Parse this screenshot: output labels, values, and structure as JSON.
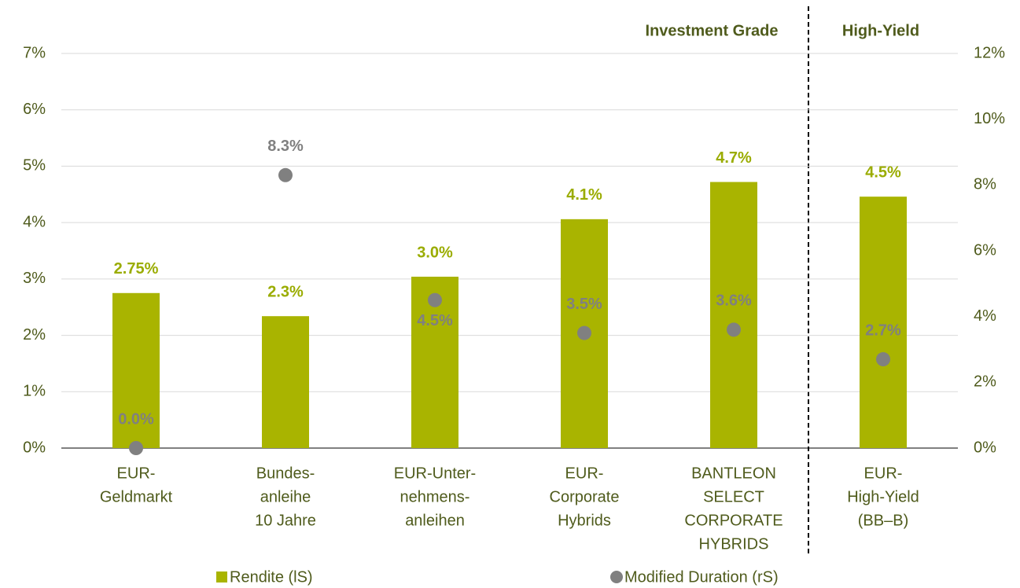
{
  "chart_data": {
    "type": "bar",
    "categories": [
      [
        "EUR-",
        "Geldmarkt"
      ],
      [
        "Bundes-",
        "anleihe",
        "10 Jahre"
      ],
      [
        "EUR-Unter-",
        "nehmens-",
        "anleihen"
      ],
      [
        "EUR-",
        "Corporate",
        "Hybrids"
      ],
      [
        "BANTLEON",
        "SELECT",
        "CORPORATE",
        "HYBRIDS"
      ],
      [
        "EUR-",
        "High-Yield",
        "(BB–B)"
      ]
    ],
    "series": [
      {
        "name": "Rendite (lS)",
        "type": "bar",
        "color": "#a9b400",
        "label_color": "#9aac00",
        "values": [
          2.75,
          2.34,
          3.04,
          4.06,
          4.72,
          4.46
        ],
        "value_labels": [
          "2.75%",
          "2.3%",
          "3.0%",
          "4.1%",
          "4.7%",
          "4.5%"
        ]
      },
      {
        "name": "Modified Duration (rS)",
        "type": "scatter",
        "axis": "y2",
        "color": "#808080",
        "label_color": "#808080",
        "values": [
          0.0,
          8.3,
          4.5,
          3.5,
          3.6,
          2.7
        ],
        "value_labels": [
          "0.0%",
          "8.3%",
          "4.5%",
          "3.5%",
          "3.6%",
          "2.7%"
        ]
      }
    ],
    "ylim": [
      0,
      7
    ],
    "yticks": [
      {
        "value": 0,
        "label": "0%"
      },
      {
        "value": 1,
        "label": "1%"
      },
      {
        "value": 2,
        "label": "2%"
      },
      {
        "value": 3,
        "label": "3%"
      },
      {
        "value": 4,
        "label": "4%"
      },
      {
        "value": 5,
        "label": "5%"
      },
      {
        "value": 6,
        "label": "6%"
      },
      {
        "value": 7,
        "label": "7%"
      }
    ],
    "y2lim": [
      0,
      12
    ],
    "y2ticks": [
      {
        "value": 0,
        "label": "0%"
      },
      {
        "value": 2,
        "label": "2%"
      },
      {
        "value": 4,
        "label": "4%"
      },
      {
        "value": 6,
        "label": "6%"
      },
      {
        "value": 8,
        "label": "8%"
      },
      {
        "value": 10,
        "label": "10%"
      },
      {
        "value": 12,
        "label": "12%"
      }
    ],
    "grid": true,
    "legend": "bottom",
    "annotations": [
      "Investment Grade",
      "High-Yield"
    ]
  }
}
